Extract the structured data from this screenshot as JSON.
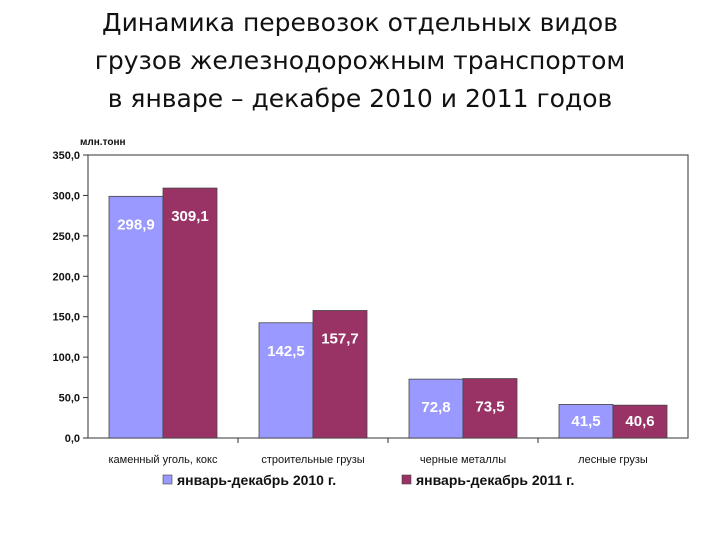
{
  "title_lines": [
    "Динамика перевозок отдельных видов",
    "грузов железнодорожным транспортом",
    "в январе – декабре 2010 и 2011 годов"
  ],
  "chart_data": {
    "type": "bar",
    "title": "Динамика перевозок отдельных видов грузов железнодорожным транспортом в январе – декабре 2010 и 2011 годов",
    "unit_label": "млн.тонн",
    "categories": [
      "каменный уголь, кокс",
      "строительные грузы",
      "черные металлы",
      "лесные грузы"
    ],
    "series": [
      {
        "name": "январь-декабрь 2010 г.",
        "color": "#9999ff",
        "values": [
          298.9,
          142.5,
          72.8,
          41.5
        ],
        "labels": [
          "298,9",
          "142,5",
          "72,8",
          "41,5"
        ],
        "label_color": "#ffffff"
      },
      {
        "name": "январь-декабрь 2011 г.",
        "color": "#993366",
        "values": [
          309.1,
          157.7,
          73.5,
          40.6
        ],
        "labels": [
          "309,1",
          "157,7",
          "73,5",
          "40,6"
        ],
        "label_color": "#ffffff"
      }
    ],
    "ylim": [
      0,
      350
    ],
    "yticks": [
      0,
      50,
      100,
      150,
      200,
      250,
      300,
      350
    ],
    "ytick_labels": [
      "0,0",
      "50,0",
      "100,0",
      "150,0",
      "200,0",
      "250,0",
      "300,0",
      "350,0"
    ],
    "grid": false,
    "legend_position": "bottom"
  }
}
